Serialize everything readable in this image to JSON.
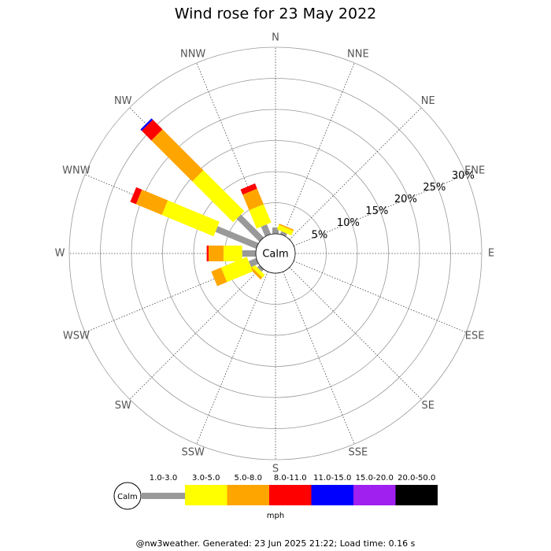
{
  "chart_data": {
    "type": "wind-rose",
    "title": "Wind rose for 23 May 2022",
    "directions": [
      "N",
      "NNE",
      "NE",
      "ENE",
      "E",
      "ESE",
      "SE",
      "SSE",
      "S",
      "SSW",
      "SW",
      "WSW",
      "W",
      "WNW",
      "NW",
      "NNW"
    ],
    "center_label": "Calm",
    "rlim": [
      0,
      30
    ],
    "rticks": [
      {
        "value": 5,
        "label": "5%"
      },
      {
        "value": 10,
        "label": "10%"
      },
      {
        "value": 15,
        "label": "15%"
      },
      {
        "value": 20,
        "label": "20%"
      },
      {
        "value": 25,
        "label": "25%"
      },
      {
        "value": 30,
        "label": "30%"
      }
    ],
    "series": [
      {
        "name": "1.0-3.0",
        "color": "#999999",
        "values": [
          1.0,
          0.5,
          0,
          0,
          0,
          0,
          0,
          0,
          0,
          0,
          0.5,
          1.3,
          2.2,
          7.1,
          5.2,
          1.7
        ]
      },
      {
        "name": "3.0-5.0",
        "color": "#ffff00",
        "values": [
          0,
          0.8,
          0,
          0,
          0,
          0,
          0,
          0,
          0,
          0,
          0.6,
          4.5,
          3.0,
          9.0,
          9.3,
          3.2
        ]
      },
      {
        "name": "5.0-8.0",
        "color": "#ffa500",
        "values": [
          0,
          0.2,
          0,
          0,
          0,
          0,
          0,
          0,
          0,
          0,
          0.4,
          1.7,
          2.4,
          4.5,
          9.3,
          2.7
        ]
      },
      {
        "name": "8.0-11.0",
        "color": "#ff0000",
        "values": [
          0,
          0,
          0,
          0,
          0,
          0,
          0,
          0,
          0,
          0,
          0,
          0,
          0.3,
          1.0,
          2.2,
          0.9
        ]
      },
      {
        "name": "11.0-15.0",
        "color": "#0000ff",
        "values": [
          0,
          0,
          0,
          0,
          0,
          0,
          0,
          0,
          0,
          0,
          0,
          0,
          0,
          0,
          0.3,
          0
        ]
      },
      {
        "name": "15.0-20.0",
        "color": "#a020f0",
        "values": [
          0,
          0,
          0,
          0,
          0,
          0,
          0,
          0,
          0,
          0,
          0,
          0,
          0,
          0,
          0,
          0
        ]
      },
      {
        "name": "20.0-50.0",
        "color": "#000000",
        "values": [
          0,
          0,
          0,
          0,
          0,
          0,
          0,
          0,
          0,
          0,
          0,
          0,
          0,
          0,
          0,
          0
        ]
      }
    ],
    "legend_unit": "mph",
    "footer": "@nw3weather. Generated: 23 Jun 2025 21:22; Load time: 0.16 s"
  }
}
